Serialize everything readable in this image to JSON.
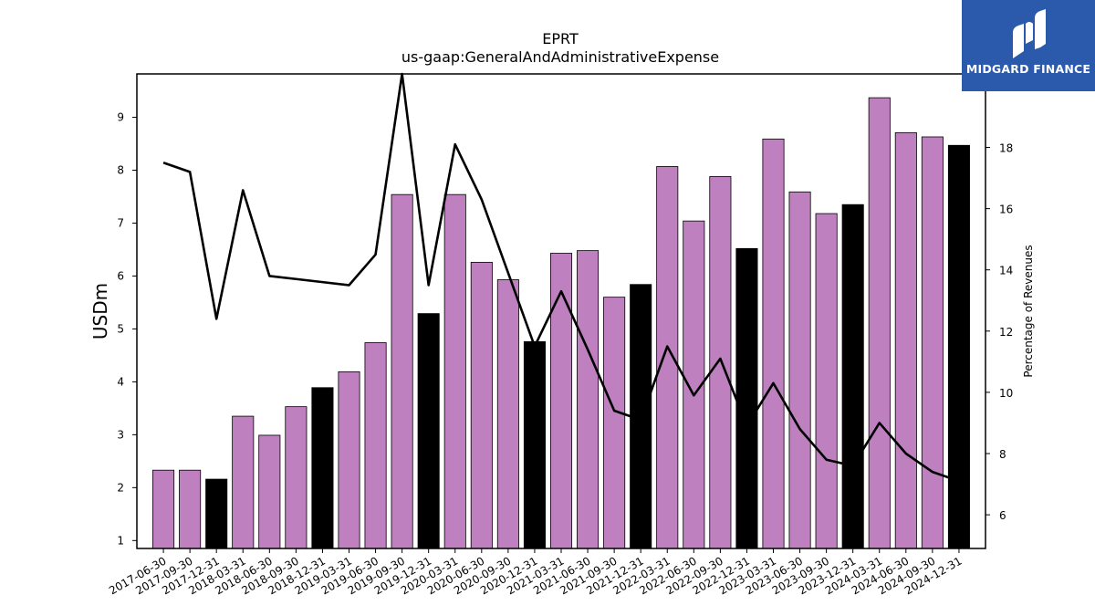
{
  "chart_data": {
    "type": "bar",
    "title": "EPRT",
    "subtitle": "us-gaap:GeneralAndAdministrativeExpense",
    "ylabel": "USDm",
    "y2label": "Percentage of Revenues",
    "ylim": [
      0.85,
      9.82
    ],
    "y2lim": [
      4.9,
      20.4
    ],
    "yticks": [
      "1",
      "2",
      "3",
      "4",
      "5",
      "6",
      "7",
      "8",
      "9"
    ],
    "y2ticks": [
      "6",
      "8",
      "10",
      "12",
      "14",
      "16",
      "18"
    ],
    "categories": [
      "2017-06-30",
      "2017-09-30",
      "2017-12-31",
      "2018-03-31",
      "2018-06-30",
      "2018-09-30",
      "2018-12-31",
      "2019-03-31",
      "2019-06-30",
      "2019-09-30",
      "2019-12-31",
      "2020-03-31",
      "2020-06-30",
      "2020-09-30",
      "2020-12-31",
      "2021-03-31",
      "2021-06-30",
      "2021-09-30",
      "2021-12-31",
      "2022-03-31",
      "2022-06-30",
      "2022-09-30",
      "2022-12-31",
      "2023-03-31",
      "2023-06-30",
      "2023-09-30",
      "2023-12-31",
      "2024-03-31",
      "2024-06-30",
      "2024-09-30",
      "2024-12-31"
    ],
    "series": [
      {
        "values": [
          2.33,
          2.33,
          2.16,
          3.35,
          2.99,
          3.53,
          3.89,
          4.19,
          4.74,
          7.54,
          5.29,
          7.54,
          6.26,
          5.93,
          4.76,
          6.43,
          6.48,
          5.6,
          5.84,
          8.07,
          7.04,
          7.88,
          6.52,
          8.59,
          7.59,
          7.18,
          7.35,
          9.37,
          8.71,
          8.63,
          8.47
        ],
        "highlight": [
          false,
          false,
          true,
          false,
          false,
          false,
          true,
          false,
          false,
          false,
          true,
          false,
          false,
          false,
          true,
          false,
          false,
          false,
          true,
          false,
          false,
          false,
          true,
          false,
          false,
          false,
          true,
          false,
          false,
          false,
          true
        ],
        "color": "#bf80bf",
        "highlight_color": "#000000"
      },
      {
        "axis": "right",
        "type": "line",
        "color": "#000000",
        "values": [
          17.5,
          17.2,
          12.4,
          16.6,
          13.8,
          13.7,
          13.6,
          13.5,
          14.5,
          20.4,
          13.5,
          18.1,
          16.3,
          13.9,
          11.5,
          13.3,
          11.4,
          9.4,
          9.1,
          11.5,
          9.9,
          11.1,
          8.9,
          10.3,
          8.8,
          7.8,
          7.6,
          9.0,
          8.0,
          7.4,
          7.1
        ]
      }
    ]
  },
  "logo": {
    "brand": "MIDGARD FINANCE"
  }
}
